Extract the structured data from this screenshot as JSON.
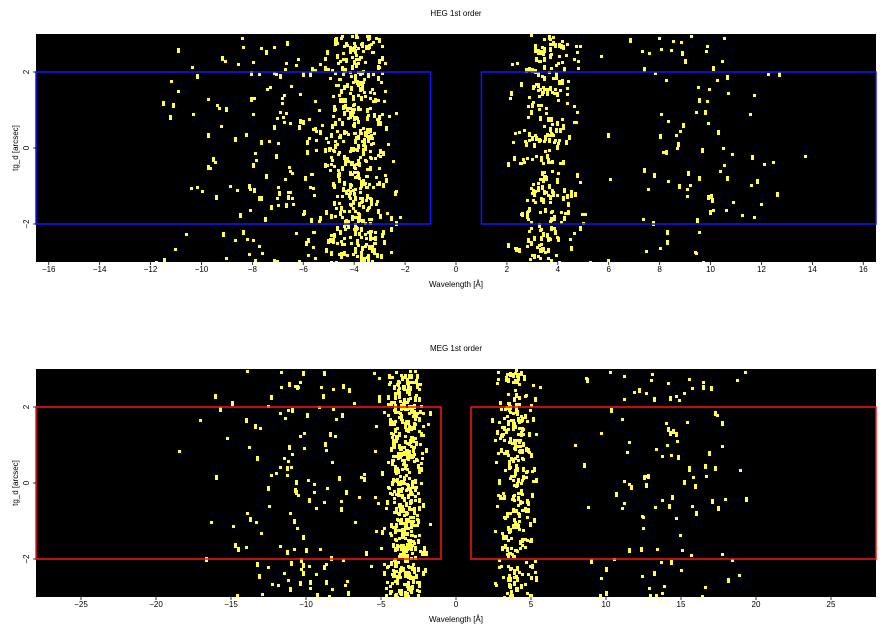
{
  "chart_data": [
    {
      "type": "heatmap",
      "title": "HEG 1st order",
      "xlabel": "Wavelength [Å]",
      "ylabel": "tg_d [arcsec]",
      "xlim": [
        -16.5,
        16.5
      ],
      "ylim": [
        -3.0,
        3.0
      ],
      "xticks": [
        -16,
        -14,
        -12,
        -10,
        -8,
        -6,
        -4,
        -2,
        0,
        2,
        4,
        6,
        8,
        10,
        12,
        14,
        16
      ],
      "xtick_labels": [
        "−16",
        "−14",
        "−12",
        "−10",
        "−8",
        "−6",
        "−4",
        "−2",
        "0",
        "2",
        "4",
        "6",
        "8",
        "10",
        "12",
        "14",
        "16"
      ],
      "yticks": [
        -2,
        0,
        2
      ],
      "ytick_labels": [
        "−2",
        "0",
        "2"
      ],
      "background": "#000000",
      "event_color": "#ffff4c",
      "grid": false,
      "extraction_regions": [
        {
          "x": [
            -16.5,
            -1.0
          ],
          "y": [
            -2.0,
            2.0
          ],
          "color": "#1414ff"
        },
        {
          "x": [
            1.0,
            16.5
          ],
          "y": [
            -2.0,
            2.0
          ],
          "color": "#1414ff"
        }
      ],
      "events": [
        {
          "center": -4.0,
          "spread": 1.6,
          "count": 470
        },
        {
          "center": 3.5,
          "spread": 1.5,
          "count": 290
        },
        {
          "center": -7.0,
          "spread": 5.0,
          "count": 170
        },
        {
          "center": 9.0,
          "spread": 5.0,
          "count": 95
        }
      ]
    },
    {
      "type": "heatmap",
      "title": "MEG 1st order",
      "xlabel": "Wavelength [Å]",
      "ylabel": "tg_d [arcsec]",
      "xlim": [
        -28.0,
        28.0
      ],
      "ylim": [
        -3.0,
        3.0
      ],
      "xticks": [
        -25,
        -20,
        -15,
        -10,
        -5,
        0,
        5,
        10,
        15,
        20,
        25
      ],
      "xtick_labels": [
        "−25",
        "−20",
        "−15",
        "−10",
        "−5",
        "0",
        "5",
        "10",
        "15",
        "20",
        "25"
      ],
      "yticks": [
        -2,
        0,
        2
      ],
      "ytick_labels": [
        "−2",
        "0",
        "2"
      ],
      "background": "#000000",
      "event_color": "#ffff4c",
      "grid": false,
      "extraction_regions": [
        {
          "x": [
            -28.0,
            -1.0
          ],
          "y": [
            -2.0,
            2.0
          ],
          "color": "#ff1414"
        },
        {
          "x": [
            1.0,
            28.0
          ],
          "y": [
            -2.0,
            2.0
          ],
          "color": "#ff1414"
        }
      ],
      "events": [
        {
          "center": -3.5,
          "spread": 1.6,
          "count": 520
        },
        {
          "center": 3.8,
          "spread": 1.5,
          "count": 310
        },
        {
          "center": -10.0,
          "spread": 8.0,
          "count": 150
        },
        {
          "center": 14.0,
          "spread": 8.0,
          "count": 110
        }
      ]
    }
  ]
}
